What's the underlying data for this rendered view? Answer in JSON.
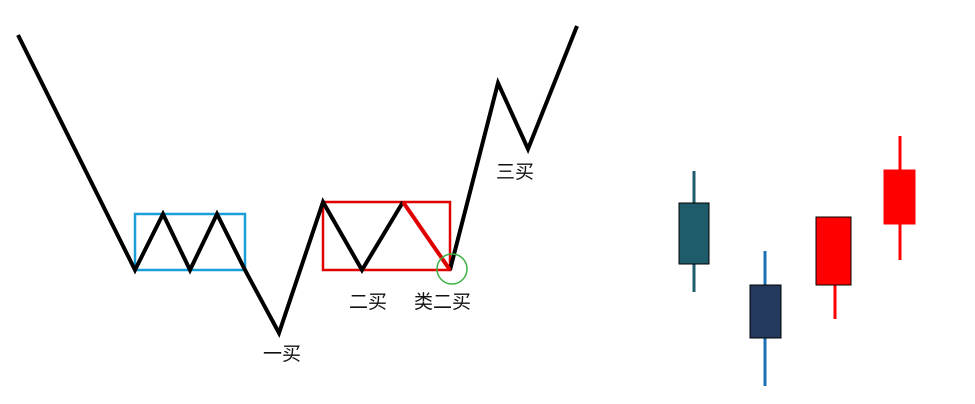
{
  "labels": {
    "first_buy": "一买",
    "second_buy": "二买",
    "quasi_second_buy": "类二买",
    "third_buy": "三买"
  },
  "colors": {
    "price_line": "#000000",
    "consolidation_box_1": "#1a9fd9",
    "consolidation_box_2": "#e00000",
    "highlight_segment": "#e00000",
    "circle_marker": "#3cb043",
    "candle_1": "#1f5c6b",
    "candle_2": "#233a5e",
    "candle_2_wick": "#1f6fb5",
    "candle_3": "#ff0000",
    "candle_4": "#ff0000"
  },
  "candles": [
    {
      "name": "candle-dark-teal",
      "color_key": "candle_1"
    },
    {
      "name": "candle-dark-navy",
      "color_key": "candle_2"
    },
    {
      "name": "candle-red-1",
      "color_key": "candle_3"
    },
    {
      "name": "candle-red-2",
      "color_key": "candle_4"
    }
  ]
}
